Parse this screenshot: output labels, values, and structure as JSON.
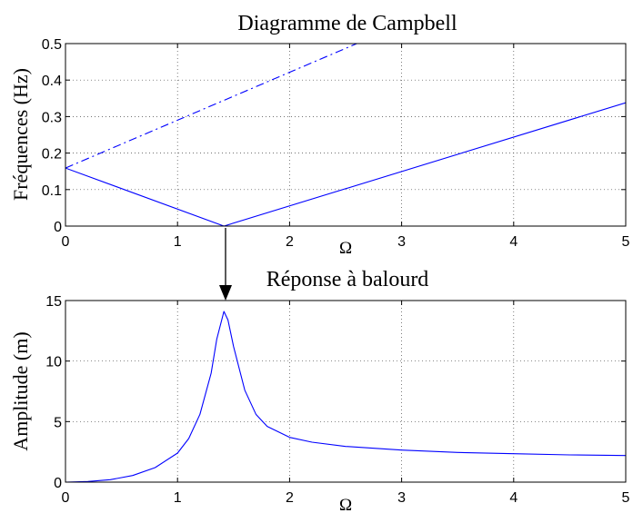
{
  "colors": {
    "series": "#0000ff",
    "axis": "#000000",
    "grid": "#444444"
  },
  "chart_data": [
    {
      "type": "line",
      "title": "Diagramme de Campbell",
      "xlabel": "Ω",
      "ylabel": "Fréquences (Hz)",
      "xlim": [
        0,
        5
      ],
      "ylim": [
        0,
        0.5
      ],
      "xticks": [
        "0",
        "1",
        "2",
        "3",
        "4",
        "5"
      ],
      "yticks": [
        "0",
        "0.1",
        "0.2",
        "0.3",
        "0.4",
        "0.5"
      ],
      "grid": true,
      "series": [
        {
          "style": "dashdot",
          "x": [
            0,
            2.6
          ],
          "y": [
            0.159,
            0.5
          ]
        },
        {
          "style": "solid",
          "x": [
            0,
            1.414,
            5
          ],
          "y": [
            0.159,
            0,
            0.338
          ]
        }
      ]
    },
    {
      "type": "line",
      "title": "Réponse à balourd",
      "xlabel": "Ω",
      "ylabel": "Amplitude (m)",
      "xlim": [
        0,
        5
      ],
      "ylim": [
        0,
        15
      ],
      "xticks": [
        "0",
        "1",
        "2",
        "3",
        "4",
        "5"
      ],
      "yticks": [
        "0",
        "5",
        "10",
        "15"
      ],
      "grid": true,
      "series": [
        {
          "style": "solid",
          "x": [
            0,
            0.2,
            0.4,
            0.6,
            0.8,
            1.0,
            1.1,
            1.2,
            1.3,
            1.35,
            1.414,
            1.45,
            1.5,
            1.6,
            1.7,
            1.8,
            2.0,
            2.2,
            2.5,
            3.0,
            3.5,
            4.0,
            4.5,
            5.0
          ],
          "y": [
            0,
            0.05,
            0.2,
            0.55,
            1.2,
            2.4,
            3.6,
            5.6,
            9.0,
            11.8,
            14.1,
            13.4,
            11.2,
            7.6,
            5.6,
            4.6,
            3.7,
            3.3,
            2.95,
            2.65,
            2.45,
            2.35,
            2.25,
            2.2
          ]
        }
      ]
    }
  ]
}
